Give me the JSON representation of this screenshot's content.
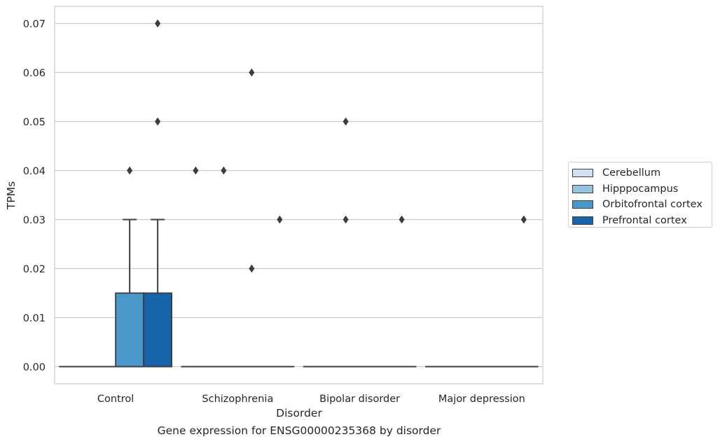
{
  "caption": "Gene expression for ENSG00000235368 by disorder",
  "chart_data": {
    "type": "box",
    "title": "",
    "xlabel": "Disorder",
    "ylabel": "TPMs",
    "categories": [
      "Control",
      "Schizophrenia",
      "Bipolar disorder",
      "Major depression"
    ],
    "ylim": [
      -0.0035,
      0.0735
    ],
    "yticks": [
      0.0,
      0.01,
      0.02,
      0.03,
      0.04,
      0.05,
      0.06,
      0.07
    ],
    "ytick_labels": [
      "0.00",
      "0.01",
      "0.02",
      "0.03",
      "0.04",
      "0.05",
      "0.06",
      "0.07"
    ],
    "grid": true,
    "legend_position": "right, outside plot",
    "series": [
      {
        "name": "Cerebellum",
        "color": "#d0e1f2",
        "boxes": [
          {
            "category": "Control",
            "q1": 0,
            "median": 0,
            "q3": 0,
            "whisker_low": 0,
            "whisker_high": 0,
            "outliers": []
          },
          {
            "category": "Schizophrenia",
            "q1": 0,
            "median": 0,
            "q3": 0,
            "whisker_low": 0,
            "whisker_high": 0,
            "outliers": [
              0.04
            ]
          },
          {
            "category": "Bipolar disorder",
            "q1": 0,
            "median": 0,
            "q3": 0,
            "whisker_low": 0,
            "whisker_high": 0,
            "outliers": []
          },
          {
            "category": "Major depression",
            "q1": 0,
            "median": 0,
            "q3": 0,
            "whisker_low": 0,
            "whisker_high": 0,
            "outliers": []
          }
        ]
      },
      {
        "name": "Hipppocampus",
        "color": "#94c4df",
        "boxes": [
          {
            "category": "Control",
            "q1": 0,
            "median": 0,
            "q3": 0,
            "whisker_low": 0,
            "whisker_high": 0,
            "outliers": []
          },
          {
            "category": "Schizophrenia",
            "q1": 0,
            "median": 0,
            "q3": 0,
            "whisker_low": 0,
            "whisker_high": 0,
            "outliers": [
              0.04
            ]
          },
          {
            "category": "Bipolar disorder",
            "q1": 0,
            "median": 0,
            "q3": 0,
            "whisker_low": 0,
            "whisker_high": 0,
            "outliers": [
              0.03,
              0.05
            ]
          },
          {
            "category": "Major depression",
            "q1": 0,
            "median": 0,
            "q3": 0,
            "whisker_low": 0,
            "whisker_high": 0,
            "outliers": []
          }
        ]
      },
      {
        "name": "Orbitofrontal cortex",
        "color": "#4a98c9",
        "boxes": [
          {
            "category": "Control",
            "q1": 0,
            "median": 0,
            "q3": 0.015,
            "whisker_low": 0,
            "whisker_high": 0.03,
            "outliers": [
              0.04
            ]
          },
          {
            "category": "Schizophrenia",
            "q1": 0,
            "median": 0,
            "q3": 0,
            "whisker_low": 0,
            "whisker_high": 0,
            "outliers": [
              0.06,
              0.02
            ]
          },
          {
            "category": "Bipolar disorder",
            "q1": 0,
            "median": 0,
            "q3": 0,
            "whisker_low": 0,
            "whisker_high": 0,
            "outliers": []
          },
          {
            "category": "Major depression",
            "q1": 0,
            "median": 0,
            "q3": 0,
            "whisker_low": 0,
            "whisker_high": 0,
            "outliers": []
          }
        ]
      },
      {
        "name": "Prefrontal cortex",
        "color": "#1764ab",
        "boxes": [
          {
            "category": "Control",
            "q1": 0,
            "median": 0,
            "q3": 0.015,
            "whisker_low": 0,
            "whisker_high": 0.03,
            "outliers": [
              0.05,
              0.07
            ]
          },
          {
            "category": "Schizophrenia",
            "q1": 0,
            "median": 0,
            "q3": 0,
            "whisker_low": 0,
            "whisker_high": 0,
            "outliers": [
              0.03
            ]
          },
          {
            "category": "Bipolar disorder",
            "q1": 0,
            "median": 0,
            "q3": 0,
            "whisker_low": 0,
            "whisker_high": 0,
            "outliers": [
              0.03
            ]
          },
          {
            "category": "Major depression",
            "q1": 0,
            "median": 0,
            "q3": 0,
            "whisker_low": 0,
            "whisker_high": 0,
            "outliers": [
              0.03
            ]
          }
        ]
      }
    ]
  }
}
